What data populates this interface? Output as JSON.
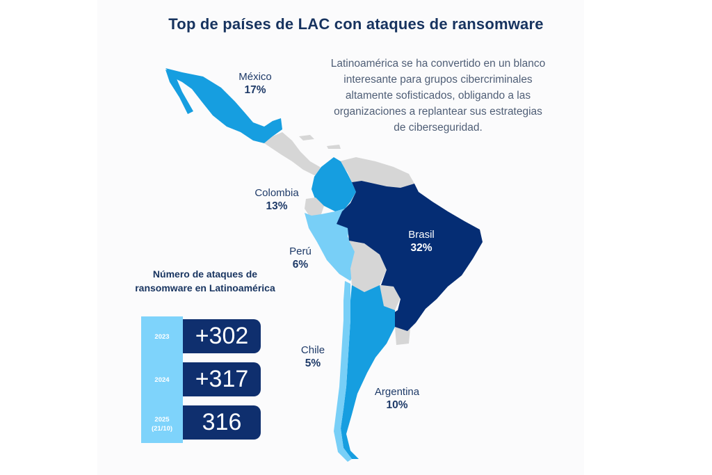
{
  "title": "Top de países de LAC con ataques de ransomware",
  "note": "Latinoamérica se ha convertido en un blanco interesante para grupos cibercriminales altamente sofisticados, obligando a las organizaciones a replantear sus estrategias de ciberseguridad.",
  "colors": {
    "brasil": "#052d74",
    "mexico_colombia_argentina": "#169ee0",
    "peru_chile": "#78cff7",
    "other": "#d6d6d6",
    "title": "#17335f"
  },
  "countries": [
    {
      "name": "México",
      "value": "17%"
    },
    {
      "name": "Colombia",
      "value": "13%"
    },
    {
      "name": "Perú",
      "value": "6%"
    },
    {
      "name": "Brasil",
      "value": "32%"
    },
    {
      "name": "Chile",
      "value": "5%"
    },
    {
      "name": "Argentina",
      "value": "10%"
    }
  ],
  "stats": {
    "title": "Número de ataques de ransomware en Latinoamérica",
    "rows": [
      {
        "year": "2023",
        "value": "+302"
      },
      {
        "year": "2024",
        "value": "+317"
      },
      {
        "year": "2025",
        "year_note": "(21/10)",
        "value": "316"
      }
    ]
  }
}
